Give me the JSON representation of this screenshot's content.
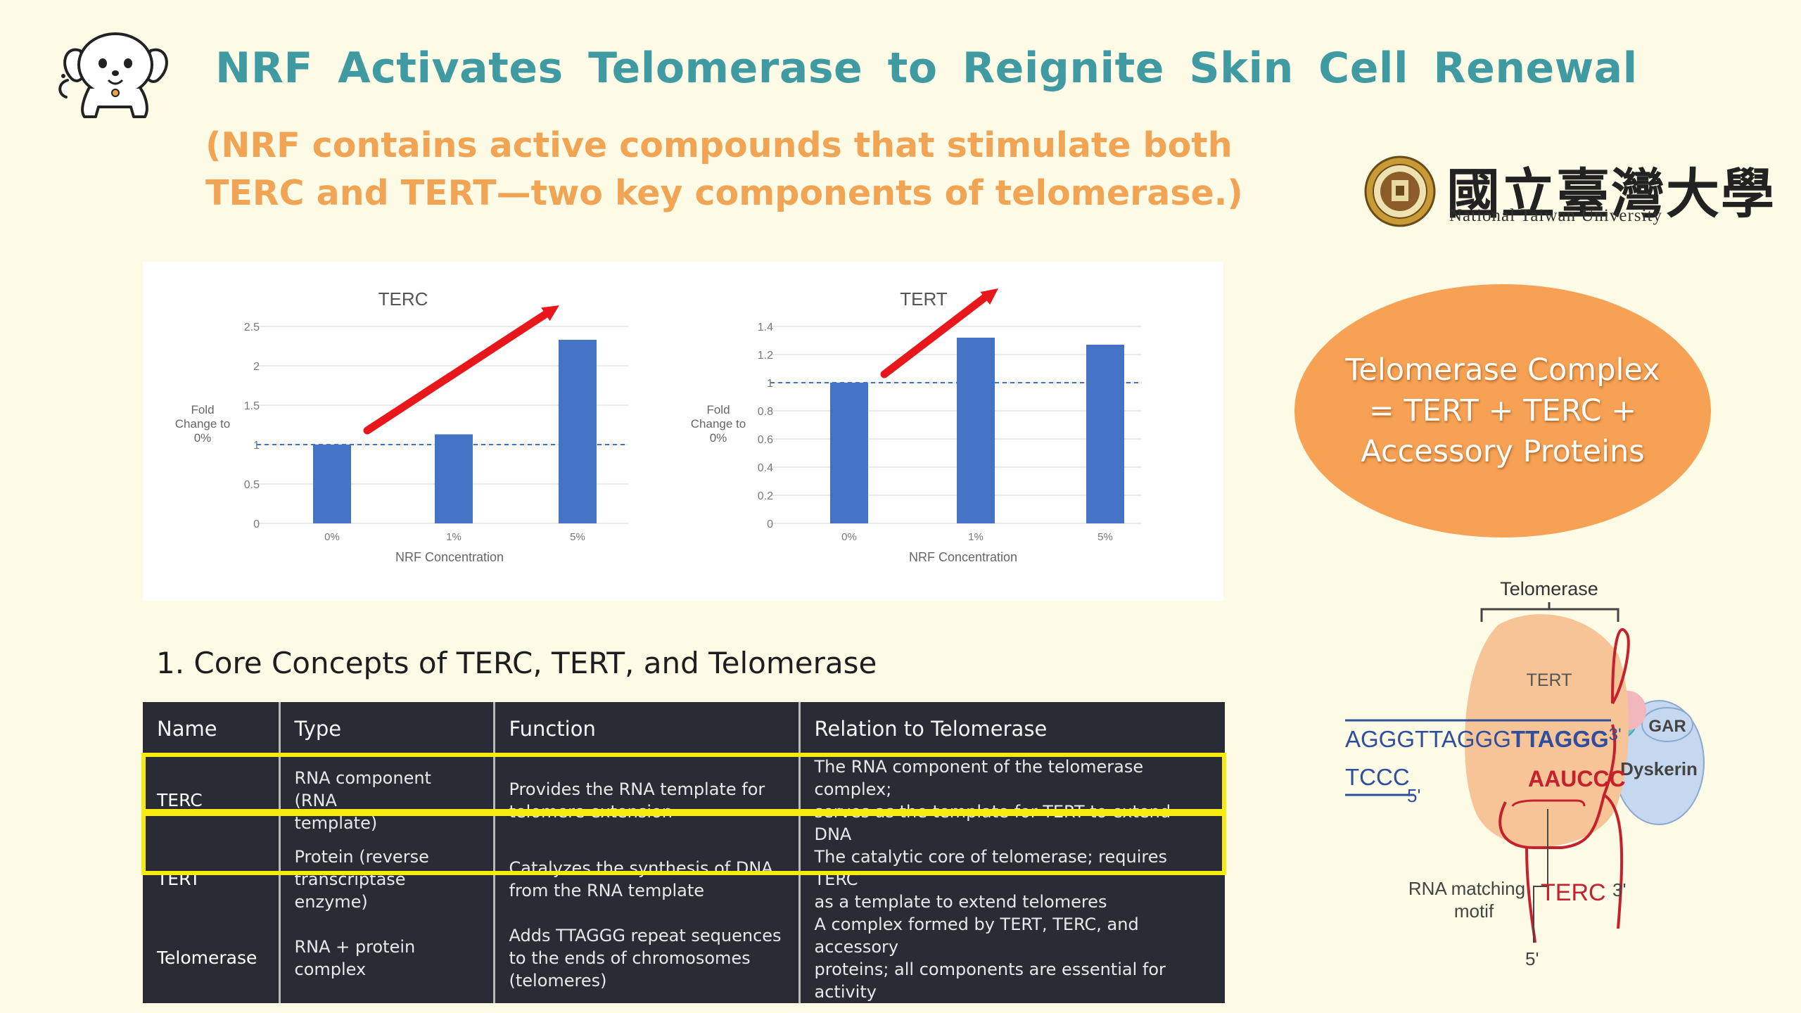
{
  "title": "NRF Activates Telomerase to Reignite Skin Cell Renewal",
  "subtitle": {
    "line1": "(NRF contains active compounds that stimulate both",
    "line2": "TERC and TERT—two key components of telomerase.)"
  },
  "logo": {
    "name_cn": "國立臺灣大學",
    "name_en": "National Taiwan University"
  },
  "colors": {
    "title": "#3f9aa1",
    "subtitle": "#f0a454",
    "bar": "#4472c4",
    "trend_arrow": "#e8171b",
    "callout": "#f6a153",
    "highlight": "#f6ea10",
    "table_bg": "#2a2c35"
  },
  "chart_data": [
    {
      "type": "bar",
      "title": "TERC",
      "categories": [
        "0%",
        "1%",
        "5%"
      ],
      "values": [
        1.0,
        1.13,
        2.33
      ],
      "xlabel": "NRF Concentration",
      "ylabel": "Fold Change to 0%",
      "ylim": [
        0,
        2.5
      ],
      "yticks": [
        "0",
        "0.5",
        "1",
        "1.5",
        "2",
        "2.5"
      ],
      "reference_line": 1,
      "grid": true,
      "trend_arrow": "up"
    },
    {
      "type": "bar",
      "title": "TERT",
      "categories": [
        "0%",
        "1%",
        "5%"
      ],
      "values": [
        1.0,
        1.32,
        1.27
      ],
      "xlabel": "NRF Concentration",
      "ylabel": "Fold Change to 0%",
      "ylim": [
        0,
        1.4
      ],
      "yticks": [
        "0",
        "0.2",
        "0.4",
        "0.6",
        "0.8",
        "1",
        "1.2",
        "1.4"
      ],
      "reference_line": 1,
      "grid": true,
      "trend_arrow": "up"
    }
  ],
  "section_heading": "1. Core Concepts of TERC, TERT, and Telomerase",
  "table": {
    "headers": [
      "Name",
      "Type",
      "Function",
      "Relation to Telomerase"
    ],
    "rows": [
      {
        "name": "TERC",
        "type": [
          "RNA component (RNA",
          "template)"
        ],
        "function": [
          "Provides the RNA template for",
          "telomere extension"
        ],
        "relation": [
          "The RNA component of the telomerase complex;",
          "serves as the template for TERT to extend DNA"
        ],
        "highlighted": true
      },
      {
        "name": "TERT",
        "type": [
          "Protein (reverse",
          "transcriptase enzyme)"
        ],
        "function": [
          "Catalyzes the synthesis of DNA",
          "from the RNA template"
        ],
        "relation": [
          "The catalytic core of telomerase; requires TERC",
          "as a template to extend telomeres"
        ],
        "highlighted": true
      },
      {
        "name": "Telomerase",
        "type": [
          "RNA + protein",
          "complex"
        ],
        "function": [
          "Adds TTAGGG repeat sequences",
          "to the ends of chromosomes",
          "(telomeres)"
        ],
        "relation": [
          "A complex formed by TERT, TERC, and accessory",
          "proteins; all components are essential for activity"
        ],
        "highlighted": false
      }
    ]
  },
  "callout": {
    "line1": "Telomerase Complex",
    "line2": "= TERT + TERC +",
    "line3": "Accessory Proteins"
  },
  "diagram": {
    "telomerase_label": "Telomerase",
    "tert_label": "TERT",
    "gar_label": "GAR",
    "dyskerin_label": "Dyskerin",
    "dna_top_plain": "AGGGTTAGGG",
    "dna_top_bold": "TTAGGG",
    "dna_top_end": "3'",
    "dna_bottom": "TCCC",
    "dna_bottom_end": "5'",
    "rna_template": "AAUCCC",
    "rna_matching_line1": "RNA matching",
    "rna_matching_line2": "motif",
    "terc_label": "TERC",
    "terc_3prime": "3'",
    "terc_5prime": "5'"
  }
}
